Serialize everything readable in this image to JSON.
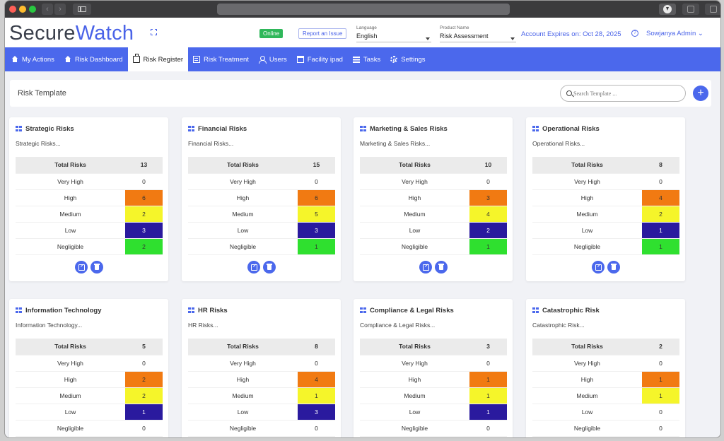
{
  "app": {
    "logo_main": "Secure",
    "logo_accent": "Watch",
    "status_badge": "Online",
    "report_link": "Report an Issue",
    "language": {
      "caption": "Language",
      "value": "English"
    },
    "product": {
      "caption": "Product Name",
      "value": "Risk Assessment"
    },
    "account_expires": "Account Expires on: Oct 28, 2025",
    "user": "Sowjanya Admin ⌄"
  },
  "nav": {
    "items": [
      {
        "label": "My Actions",
        "icon": "home-icon",
        "active": false
      },
      {
        "label": "Risk Dashboard",
        "icon": "home-icon",
        "active": false
      },
      {
        "label": "Risk Register",
        "icon": "register-icon",
        "active": true
      },
      {
        "label": "Risk Treatment",
        "icon": "document-icon",
        "active": false
      },
      {
        "label": "Users",
        "icon": "users-icon",
        "active": false
      },
      {
        "label": "Facility ipad",
        "icon": "building-icon",
        "active": false
      },
      {
        "label": "Tasks",
        "icon": "list-icon",
        "active": false
      },
      {
        "label": "Settings",
        "icon": "gear-icon",
        "active": false
      }
    ]
  },
  "toolbar": {
    "title": "Risk Template",
    "search_placeholder": "Search Template ...",
    "add_label": "+"
  },
  "level_colors": {
    "High": "#f17a12",
    "Medium": "#f5f52a",
    "Low": "#2a1a9e",
    "Negligible": "#2fe02f"
  },
  "cards": [
    {
      "title": "Strategic Risks",
      "desc": "Strategic Risks...",
      "total_label": "Total Risks",
      "total": "13",
      "rows": [
        {
          "level": "Very High",
          "count": "0"
        },
        {
          "level": "High",
          "count": "6"
        },
        {
          "level": "Medium",
          "count": "2"
        },
        {
          "level": "Low",
          "count": "3"
        },
        {
          "level": "Negligible",
          "count": "2"
        }
      ]
    },
    {
      "title": "Financial Risks",
      "desc": "Financial Risks...",
      "total_label": "Total Risks",
      "total": "15",
      "rows": [
        {
          "level": "Very High",
          "count": "0"
        },
        {
          "level": "High",
          "count": "6"
        },
        {
          "level": "Medium",
          "count": "5"
        },
        {
          "level": "Low",
          "count": "3"
        },
        {
          "level": "Negligible",
          "count": "1"
        }
      ]
    },
    {
      "title": "Marketing & Sales Risks",
      "desc": "Marketing & Sales Risks...",
      "total_label": "Total Risks",
      "total": "10",
      "rows": [
        {
          "level": "Very High",
          "count": "0"
        },
        {
          "level": "High",
          "count": "3"
        },
        {
          "level": "Medium",
          "count": "4"
        },
        {
          "level": "Low",
          "count": "2"
        },
        {
          "level": "Negligible",
          "count": "1"
        }
      ]
    },
    {
      "title": "Operational Risks",
      "desc": "Operational Risks...",
      "total_label": "Total Risks",
      "total": "8",
      "rows": [
        {
          "level": "Very High",
          "count": "0"
        },
        {
          "level": "High",
          "count": "4"
        },
        {
          "level": "Medium",
          "count": "2"
        },
        {
          "level": "Low",
          "count": "1"
        },
        {
          "level": "Negligible",
          "count": "1"
        }
      ]
    },
    {
      "title": "Information Technology",
      "desc": "Information Technology...",
      "total_label": "Total Risks",
      "total": "5",
      "rows": [
        {
          "level": "Very High",
          "count": "0"
        },
        {
          "level": "High",
          "count": "2"
        },
        {
          "level": "Medium",
          "count": "2"
        },
        {
          "level": "Low",
          "count": "1"
        },
        {
          "level": "Negligible",
          "count": "0"
        }
      ]
    },
    {
      "title": "HR Risks",
      "desc": "HR Risks...",
      "total_label": "Total Risks",
      "total": "8",
      "rows": [
        {
          "level": "Very High",
          "count": "0"
        },
        {
          "level": "High",
          "count": "4"
        },
        {
          "level": "Medium",
          "count": "1"
        },
        {
          "level": "Low",
          "count": "3"
        },
        {
          "level": "Negligible",
          "count": "0"
        }
      ]
    },
    {
      "title": "Compliance & Legal Risks",
      "desc": "Compliance & Legal Risks...",
      "total_label": "Total Risks",
      "total": "3",
      "rows": [
        {
          "level": "Very High",
          "count": "0"
        },
        {
          "level": "High",
          "count": "1"
        },
        {
          "level": "Medium",
          "count": "1"
        },
        {
          "level": "Low",
          "count": "1"
        },
        {
          "level": "Negligible",
          "count": "0"
        }
      ]
    },
    {
      "title": "Catastrophic Risk",
      "desc": "Catastrophic Risk...",
      "total_label": "Total Risks",
      "total": "2",
      "rows": [
        {
          "level": "Very High",
          "count": "0"
        },
        {
          "level": "High",
          "count": "1"
        },
        {
          "level": "Medium",
          "count": "1"
        },
        {
          "level": "Low",
          "count": "0"
        },
        {
          "level": "Negligible",
          "count": "0"
        }
      ]
    }
  ]
}
